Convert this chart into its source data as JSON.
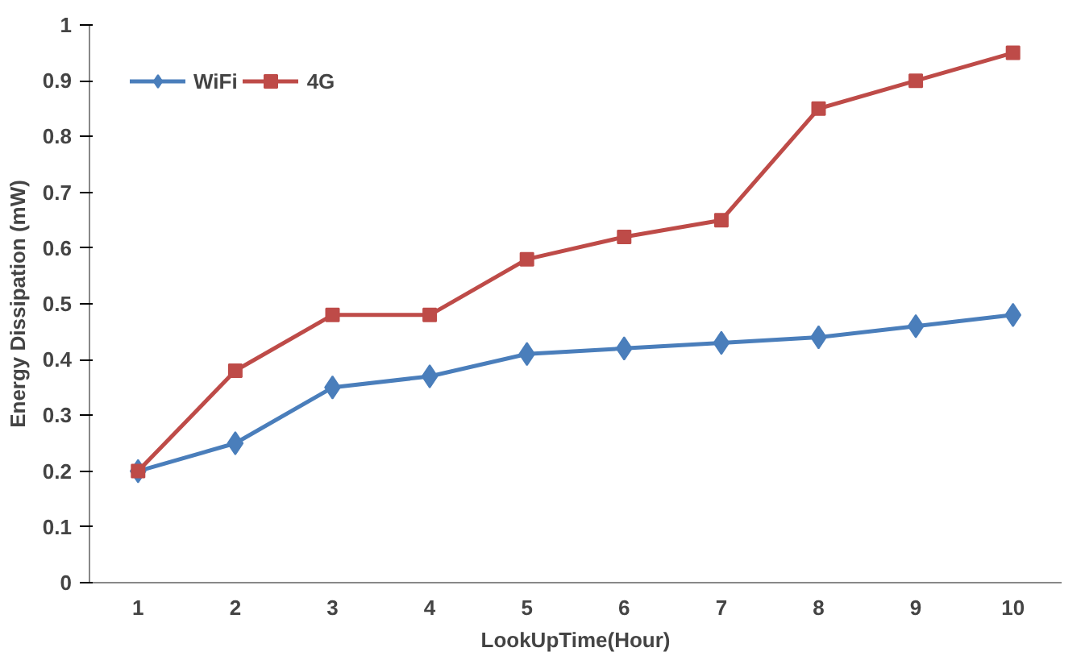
{
  "chart_data": {
    "type": "line",
    "xlabel": "LookUpTime(Hour)",
    "ylabel": "Energy Dissipation (mW)",
    "categories": [
      "1",
      "2",
      "3",
      "4",
      "5",
      "6",
      "7",
      "8",
      "9",
      "10"
    ],
    "series": [
      {
        "name": "WiFi",
        "color": "#4a7ebb",
        "marker": "diamond",
        "values": [
          0.2,
          0.25,
          0.35,
          0.37,
          0.41,
          0.42,
          0.43,
          0.44,
          0.46,
          0.48
        ]
      },
      {
        "name": "4G",
        "color": "#be4b48",
        "marker": "square",
        "values": [
          0.2,
          0.38,
          0.48,
          0.48,
          0.58,
          0.62,
          0.65,
          0.85,
          0.9,
          0.95
        ]
      }
    ],
    "ylim": [
      0,
      1
    ],
    "yticks": [
      0,
      0.1,
      0.2,
      0.3,
      0.4,
      0.5,
      0.6,
      0.7,
      0.8,
      0.9,
      1
    ],
    "grid": false,
    "legend": "top left",
    "line_style": "solid"
  }
}
